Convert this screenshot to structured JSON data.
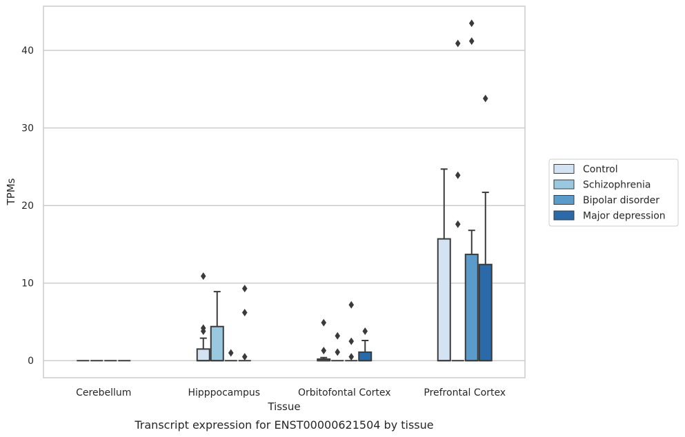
{
  "chart_data": {
    "type": "box",
    "title": "",
    "caption": "Transcript expression for ENST00000621504 by tissue",
    "xlabel": "Tissue",
    "ylabel": "TPMs",
    "ylim": [
      -2.2,
      45.7
    ],
    "yticks": [
      0,
      10,
      20,
      30,
      40
    ],
    "grid": "horizontal",
    "legend_position": "right",
    "categories": [
      "Cerebellum",
      "Hipppocampus",
      "Orbitofontal Cortex",
      "Prefrontal Cortex"
    ],
    "series": [
      {
        "name": "Control",
        "color": "#d3e3f1",
        "boxes": [
          {
            "q1": 0,
            "median": 0,
            "q3": 0,
            "whisker_low": 0,
            "whisker_high": 0,
            "outliers": []
          },
          {
            "q1": 0,
            "median": 0,
            "q3": 1.5,
            "whisker_low": 0,
            "whisker_high": 2.9,
            "outliers": [
              3.8,
              4.2,
              10.9
            ]
          },
          {
            "q1": 0,
            "median": 0,
            "q3": 0.2,
            "whisker_low": 0,
            "whisker_high": 0.4,
            "outliers": [
              1.3,
              4.9
            ]
          },
          {
            "q1": 0,
            "median": 0,
            "q3": 15.7,
            "whisker_low": 0,
            "whisker_high": 24.7,
            "outliers": []
          }
        ]
      },
      {
        "name": "Schizophrenia",
        "color": "#9ac8e0",
        "boxes": [
          {
            "q1": 0,
            "median": 0,
            "q3": 0,
            "whisker_low": 0,
            "whisker_high": 0,
            "outliers": []
          },
          {
            "q1": 0,
            "median": 0,
            "q3": 4.4,
            "whisker_low": 0,
            "whisker_high": 8.9,
            "outliers": []
          },
          {
            "q1": 0,
            "median": 0,
            "q3": 0,
            "whisker_low": 0,
            "whisker_high": 0,
            "outliers": [
              1.1,
              3.2
            ]
          },
          {
            "q1": 0,
            "median": 0,
            "q3": 0,
            "whisker_low": 0,
            "whisker_high": 0,
            "outliers": [
              17.6,
              23.9,
              40.9
            ]
          }
        ]
      },
      {
        "name": "Bipolar disorder",
        "color": "#5a9bc9",
        "boxes": [
          {
            "q1": 0,
            "median": 0,
            "q3": 0,
            "whisker_low": 0,
            "whisker_high": 0,
            "outliers": []
          },
          {
            "q1": 0,
            "median": 0,
            "q3": 0,
            "whisker_low": 0,
            "whisker_high": 0,
            "outliers": [
              1.0
            ]
          },
          {
            "q1": 0,
            "median": 0,
            "q3": 0,
            "whisker_low": 0,
            "whisker_high": 0,
            "outliers": [
              0.5,
              2.5,
              7.2
            ]
          },
          {
            "q1": 0,
            "median": 0,
            "q3": 13.7,
            "whisker_low": 0,
            "whisker_high": 16.8,
            "outliers": [
              41.2,
              43.5
            ]
          }
        ]
      },
      {
        "name": "Major depression",
        "color": "#2b6aa8",
        "boxes": [
          {
            "q1": 0,
            "median": 0,
            "q3": 0,
            "whisker_low": 0,
            "whisker_high": 0,
            "outliers": []
          },
          {
            "q1": 0,
            "median": 0,
            "q3": 0,
            "whisker_low": 0,
            "whisker_high": 0,
            "outliers": [
              0.5,
              6.2,
              9.3
            ]
          },
          {
            "q1": 0,
            "median": 0,
            "q3": 1.1,
            "whisker_low": 0,
            "whisker_high": 2.6,
            "outliers": [
              3.8
            ]
          },
          {
            "q1": 0,
            "median": 0,
            "q3": 12.4,
            "whisker_low": 0,
            "whisker_high": 21.7,
            "outliers": [
              33.8
            ]
          }
        ]
      }
    ]
  }
}
